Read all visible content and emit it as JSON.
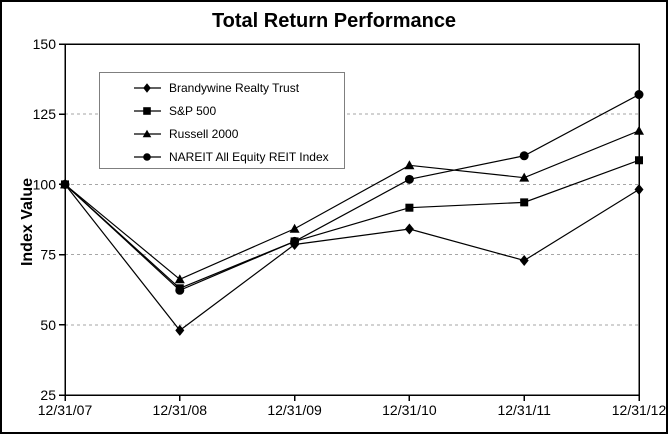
{
  "window": {
    "title": "Total Return Performance"
  },
  "chart_data": {
    "type": "line",
    "title": "Total Return Performance",
    "xlabel": "",
    "ylabel": "Index Value",
    "categories": [
      "12/31/07",
      "12/31/08",
      "12/31/09",
      "12/31/10",
      "12/31/11",
      "12/31/12"
    ],
    "series": [
      {
        "name": "Brandywine Realty Trust",
        "marker": "diamond",
        "color": "#000000",
        "values": [
          100,
          48.0,
          78.6,
          84.1,
          72.9,
          98.2
        ]
      },
      {
        "name": "S&P 500",
        "marker": "square",
        "color": "#000000",
        "values": [
          100,
          63.0,
          79.7,
          91.7,
          93.6,
          108.6
        ]
      },
      {
        "name": "Russell 2000",
        "marker": "triangle",
        "color": "#000000",
        "values": [
          100,
          66.2,
          84.2,
          106.8,
          102.4,
          119.1
        ]
      },
      {
        "name": "NAREIT All Equity REIT Index",
        "marker": "circle",
        "color": "#000000",
        "values": [
          100,
          62.3,
          79.7,
          101.8,
          110.2,
          132.0
        ]
      }
    ],
    "ylim": [
      25,
      150
    ],
    "yticks": [
      25,
      50,
      75,
      100,
      125,
      150
    ],
    "gridline_values": [
      50,
      75,
      100,
      125
    ],
    "grid_style": "dashed horizontal",
    "legend_position": "upper-left-inside",
    "colors": {
      "series": "#000000",
      "grid": "#a6a6a6",
      "axis": "#000000",
      "legend_border": "#7f7f7f",
      "background": "#ffffff",
      "text": "#000000"
    }
  }
}
